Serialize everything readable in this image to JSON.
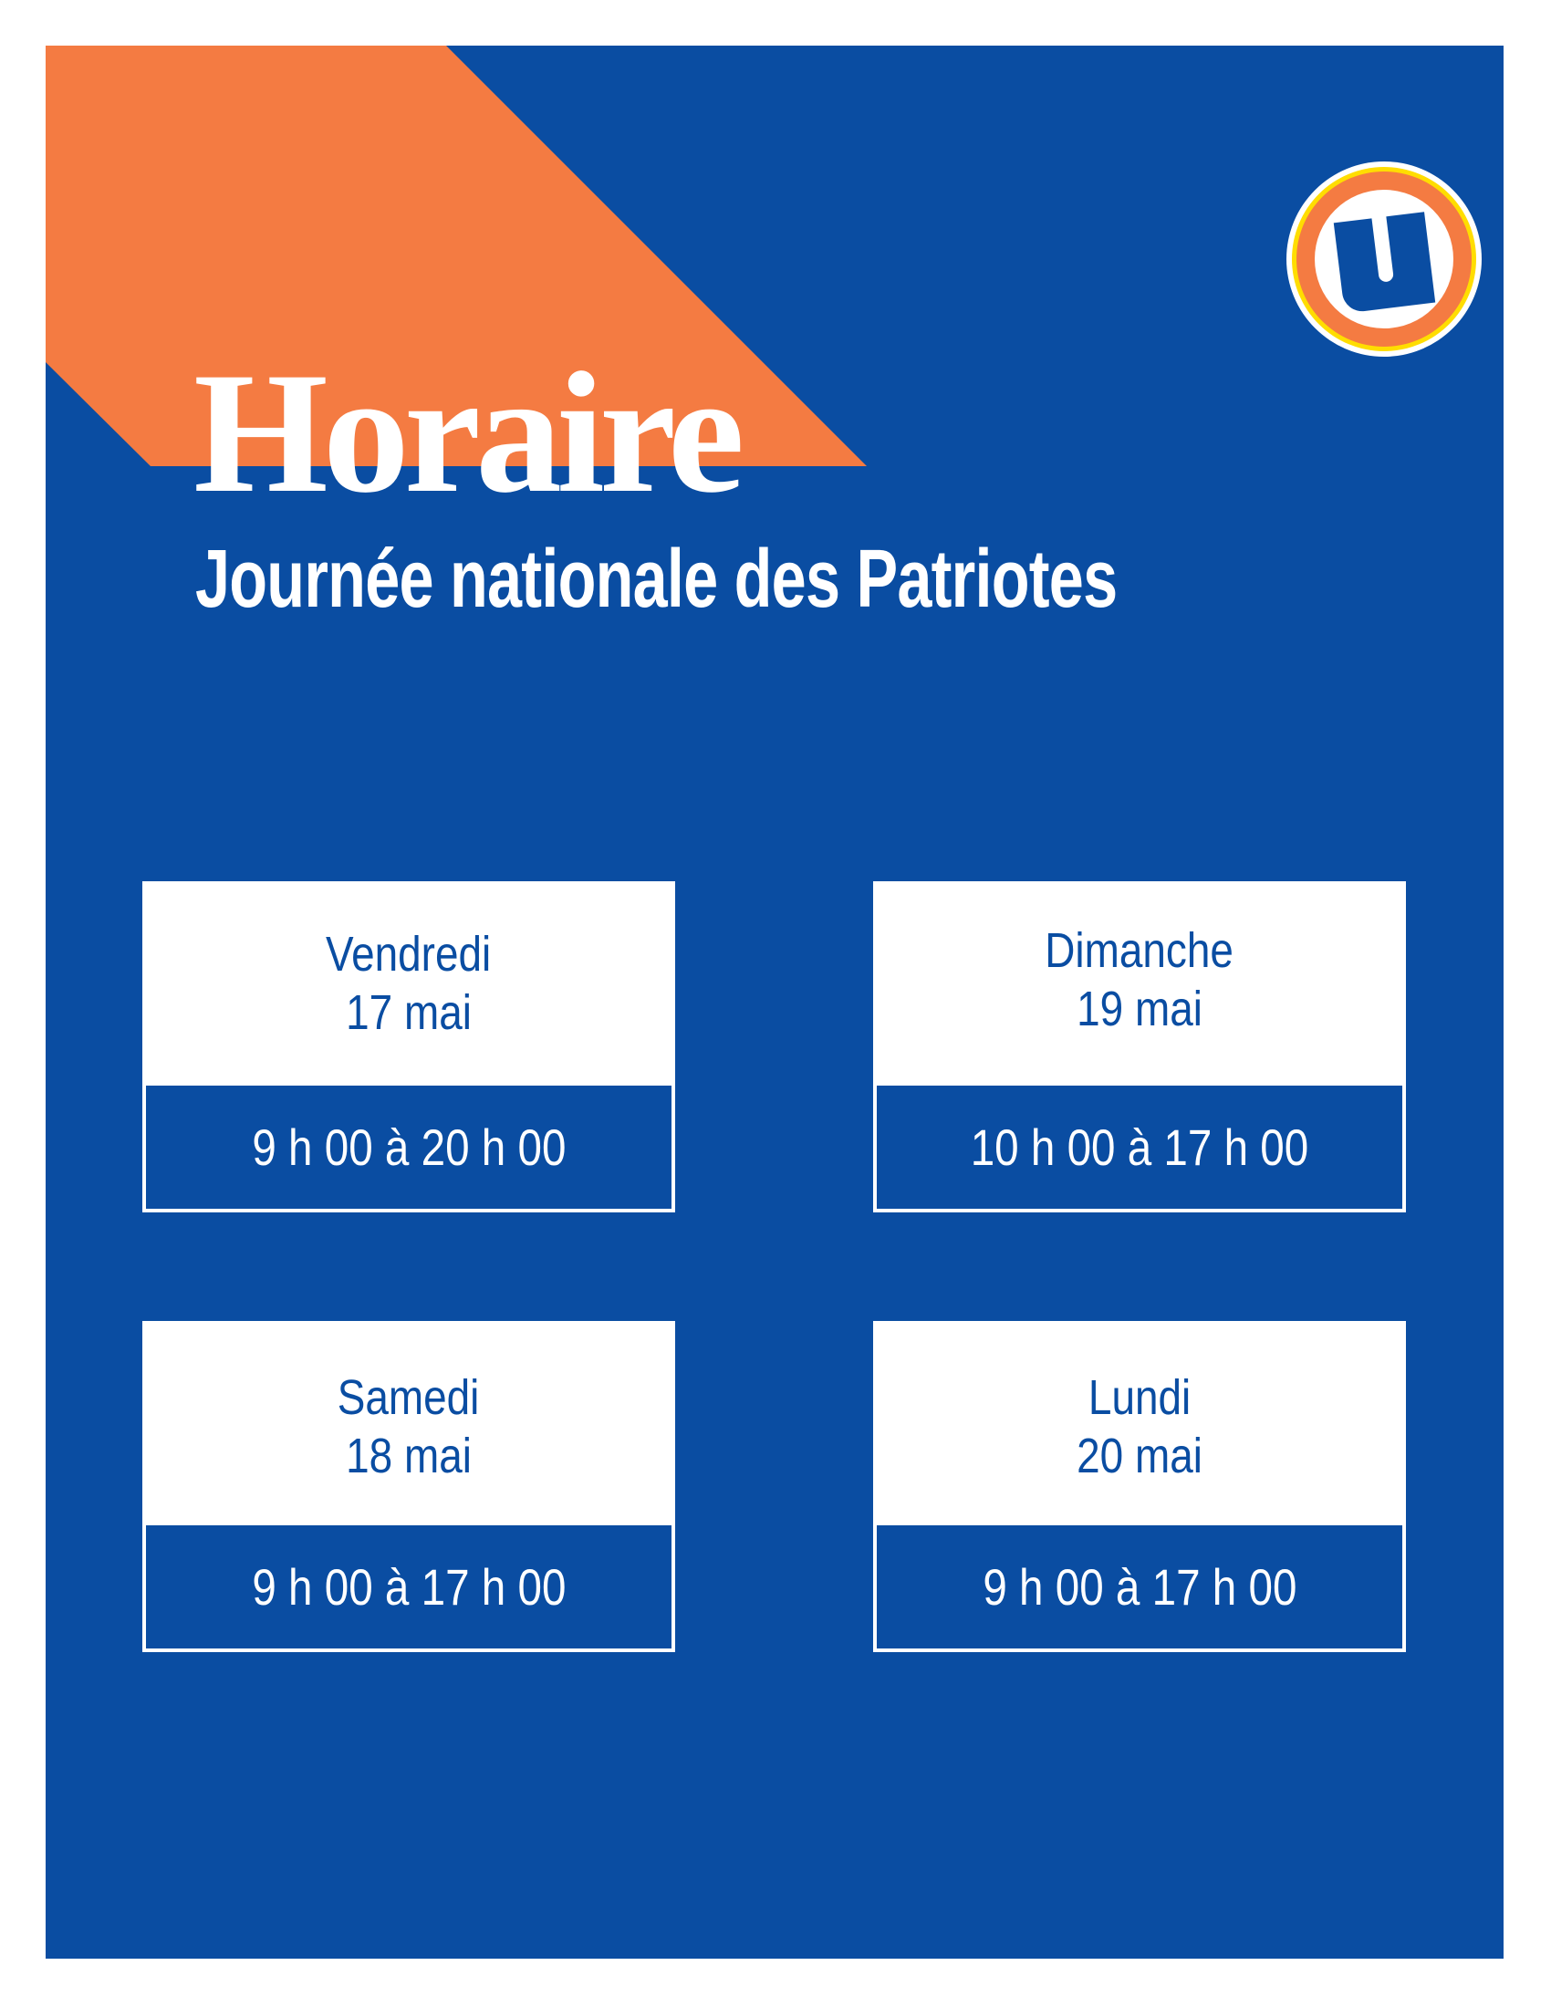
{
  "colors": {
    "background_blue": "#0a4da2",
    "accent_orange": "#f47b42",
    "logo_yellow": "#ffdd00",
    "text_white": "#ffffff"
  },
  "logo": {
    "icon": "u-logo-icon",
    "letter": "U"
  },
  "header": {
    "title": "Horaire",
    "subtitle": "Journée nationale des Patriotes"
  },
  "schedule": [
    {
      "day": "Vendredi",
      "date": "17 mai",
      "hours": "9 h 00 à 20 h 00"
    },
    {
      "day": "Dimanche",
      "date": "19 mai",
      "hours": "10 h 00 à 17 h 00"
    },
    {
      "day": "Samedi",
      "date": "18 mai",
      "hours": "9 h 00 à 17 h 00"
    },
    {
      "day": "Lundi",
      "date": "20 mai",
      "hours": "9 h 00 à 17 h 00"
    }
  ]
}
